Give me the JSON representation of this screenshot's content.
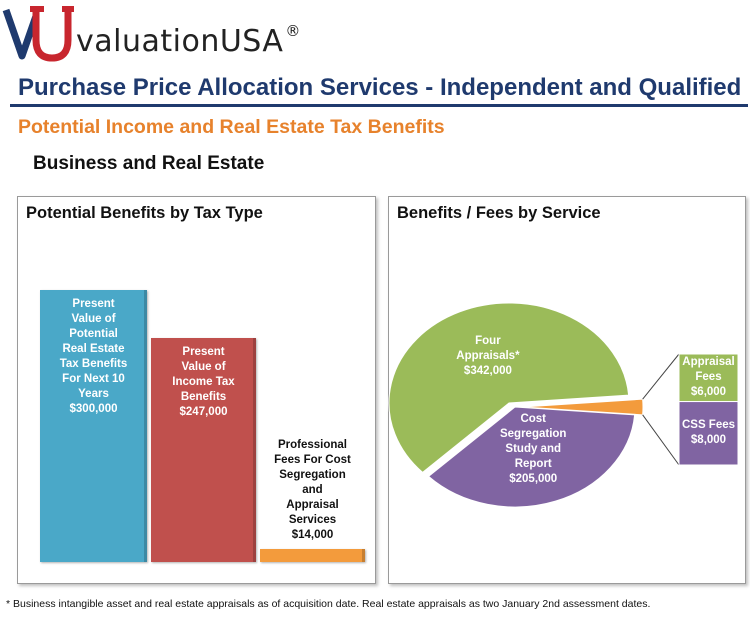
{
  "logo": {
    "text": "valuationUSA",
    "registered": "®",
    "colors": {
      "v": "#1f3a6e",
      "u": "#c8262e"
    }
  },
  "header": {
    "title": "Purchase Price Allocation Services - Independent and Qualified",
    "subtitle": "Potential Income and Real Estate Tax Benefits",
    "section": "Business and Real Estate"
  },
  "footnote": "* Business intangible asset and real estate appraisals as of acquisition date.  Real estate appraisals as two January 2nd assessment dates.",
  "chart_data": [
    {
      "type": "bar",
      "title": "Potential Benefits by Tax Type",
      "categories": [
        "Present Value of Potential Real Estate Tax Benefits For Next 10 Years",
        "Present Value of Income Tax Benefits",
        "Professional Fees For Cost Segregation and Appraisal Services"
      ],
      "values": [
        300000,
        247000,
        14000
      ],
      "labels": [
        [
          "Present",
          "Value of",
          "Potential",
          "Real Estate",
          "Tax Benefits",
          "For Next 10",
          "Years",
          "$300,000"
        ],
        [
          "Present",
          "Value of",
          "Income Tax",
          "Benefits",
          "$247,000"
        ],
        [
          "Professional",
          "Fees For Cost",
          "Segregation",
          "and",
          "Appraisal",
          "Services",
          "$14,000"
        ]
      ],
      "colors": [
        "#4aa8c8",
        "#c0504d",
        "#f39b3c"
      ],
      "ylim": [
        0,
        300000
      ],
      "grid": false
    },
    {
      "type": "pie",
      "title": "Benefits / Fees by Service",
      "slices": [
        {
          "name": "Four Appraisals*",
          "value": 342000,
          "label": [
            "Four",
            "Appraisals*",
            "$342,000"
          ],
          "color": "#9bbb59"
        },
        {
          "name": "Cost Segregation Study and Report",
          "value": 205000,
          "label": [
            "Cost",
            "Segregation",
            "Study and",
            "Report",
            "$205,000"
          ],
          "color": "#8064a2"
        },
        {
          "name": "Fees",
          "value": 14000,
          "label": [],
          "color": "#f39b3c"
        }
      ],
      "breakout": [
        {
          "name": "Appraisal Fees",
          "value": 6000,
          "label": [
            "Appraisal",
            "Fees",
            "$6,000"
          ],
          "color": "#9bbb59"
        },
        {
          "name": "CSS Fees",
          "value": 8000,
          "label": [
            "CSS Fees",
            "$8,000"
          ],
          "color": "#8064a2"
        }
      ]
    }
  ]
}
